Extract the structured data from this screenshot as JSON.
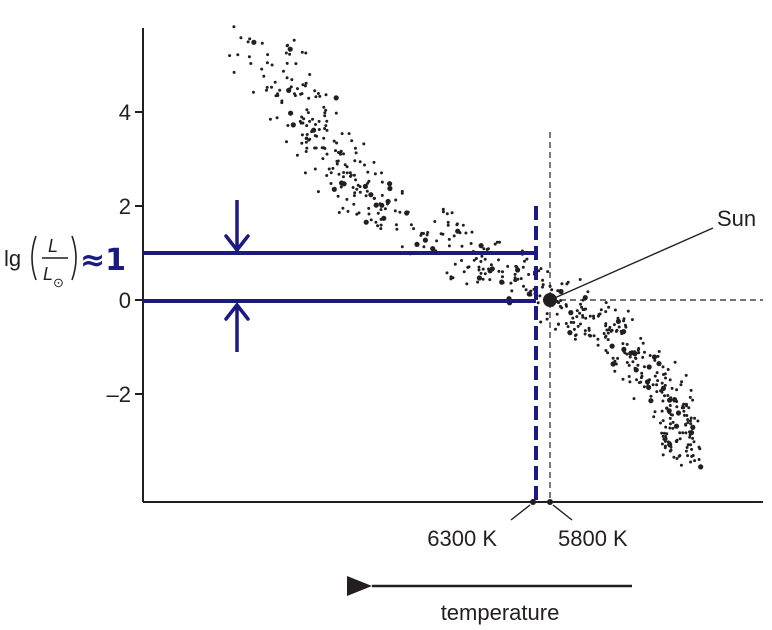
{
  "chart_data": {
    "type": "scatter",
    "title": "",
    "xlabel": "temperature",
    "ylabel": "lg(L/L⊙)",
    "ylabel_parts": {
      "lg": "lg",
      "num": "L",
      "den": "L",
      "sub": "⊙"
    },
    "x_direction": "temperature decreases to the right",
    "ylim": [
      -4.3,
      6.0
    ],
    "yticks": [
      {
        "value": 4,
        "label": "4"
      },
      {
        "value": 2,
        "label": "2"
      },
      {
        "value": 0,
        "label": "0"
      },
      {
        "value": -2,
        "label": "–2"
      }
    ],
    "grid": false,
    "legend": "none",
    "sun": {
      "label": "Sun",
      "temperature_K": 5800,
      "lg_luminosity": 0
    },
    "temperature_markers": [
      {
        "label": "6300 K",
        "temperature_K": 6300
      },
      {
        "label": "5800 K",
        "temperature_K": 5800
      }
    ],
    "star_band": {
      "description_points": [
        {
          "x_rel": 0.18,
          "y": 5.5
        },
        {
          "x_rel": 0.28,
          "y": 3.6
        },
        {
          "x_rel": 0.36,
          "y": 2.2
        },
        {
          "x_rel": 0.52,
          "y": 1.0
        },
        {
          "x_rel": 0.67,
          "y": 0.0
        },
        {
          "x_rel": 0.78,
          "y": -0.9
        },
        {
          "x_rel": 0.86,
          "y": -2.3
        },
        {
          "x_rel": 0.87,
          "y": -3.3
        }
      ]
    },
    "annotations": {
      "handwritten_estimate": "≈1",
      "upper_line_value": 1,
      "lower_line_value": -0.1,
      "color": "#1a1a80"
    }
  }
}
